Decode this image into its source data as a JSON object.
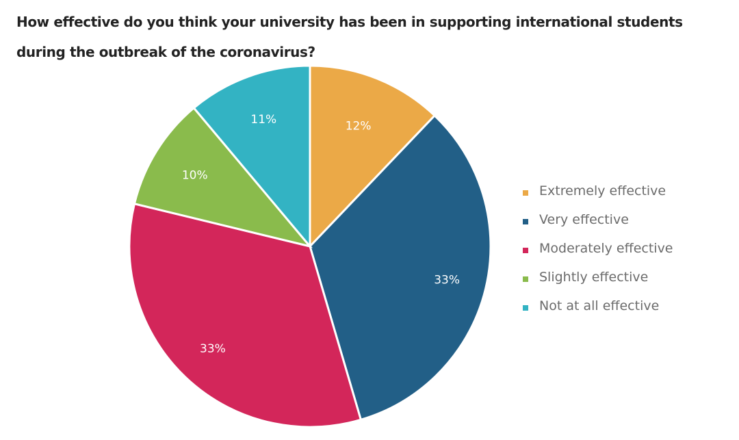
{
  "title": "How effective do you think your university has been in supporting international students during the outbreak of the coronavirus?",
  "chart_data": {
    "type": "pie",
    "title": "How effective do you think your university has been in supporting international students during the outbreak of the coronavirus?",
    "categories": [
      "Extremely effective",
      "Very effective",
      "Moderately effective",
      "Slightly effective",
      "Not at all effective"
    ],
    "values": [
      12,
      33,
      33,
      10,
      11
    ],
    "labels": [
      "12%",
      "33%",
      "33%",
      "10%",
      "11%"
    ],
    "colors": [
      "#EBA947",
      "#225F87",
      "#D3265A",
      "#8ABB4C",
      "#33B3C3"
    ],
    "start_angle": "12 o'clock",
    "direction": "clockwise",
    "legend_position": "right"
  },
  "legend": [
    {
      "label": "Extremely effective",
      "color": "#EBA947"
    },
    {
      "label": "Very effective",
      "color": "#225F87"
    },
    {
      "label": "Moderately effective",
      "color": "#D3265A"
    },
    {
      "label": "Slightly effective",
      "color": "#8ABB4C"
    },
    {
      "label": "Not at all effective",
      "color": "#33B3C3"
    }
  ]
}
